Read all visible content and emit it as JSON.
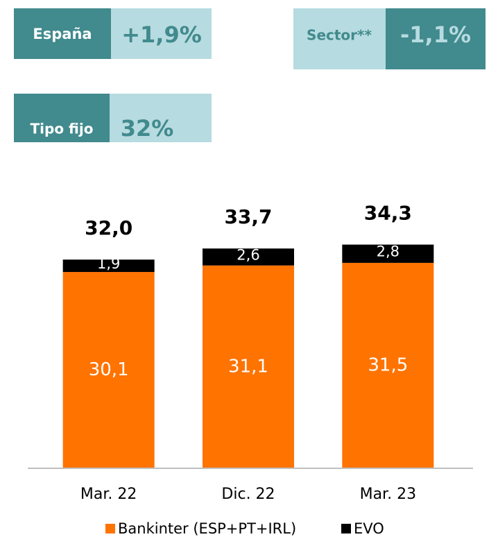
{
  "kpis": [
    {
      "label": "España",
      "value": "+1,9%"
    },
    {
      "label": "Sector**",
      "value": "-1,1%"
    },
    {
      "label": "Tipo fijo",
      "value": "32%"
    }
  ],
  "chart_data": {
    "type": "stacked_bar",
    "categories": [
      "Mar. 22",
      "Dic. 22",
      "Mar. 23"
    ],
    "series": [
      {
        "name": "Bankinter (ESP+PT+IRL)",
        "color": "#ff7300",
        "values": [
          30.1,
          31.1,
          31.5
        ],
        "value_labels": [
          "30,1",
          "31,1",
          "31,5"
        ]
      },
      {
        "name": "EVO",
        "color": "#000000",
        "values": [
          1.9,
          2.6,
          2.8
        ],
        "value_labels": [
          "1,9",
          "2,6",
          "2,8"
        ]
      }
    ],
    "totals": {
      "values": [
        32.0,
        33.7,
        34.3
      ],
      "value_labels": [
        "32,0",
        "33,7",
        "34,3"
      ]
    },
    "ylim": [
      0,
      40
    ]
  }
}
